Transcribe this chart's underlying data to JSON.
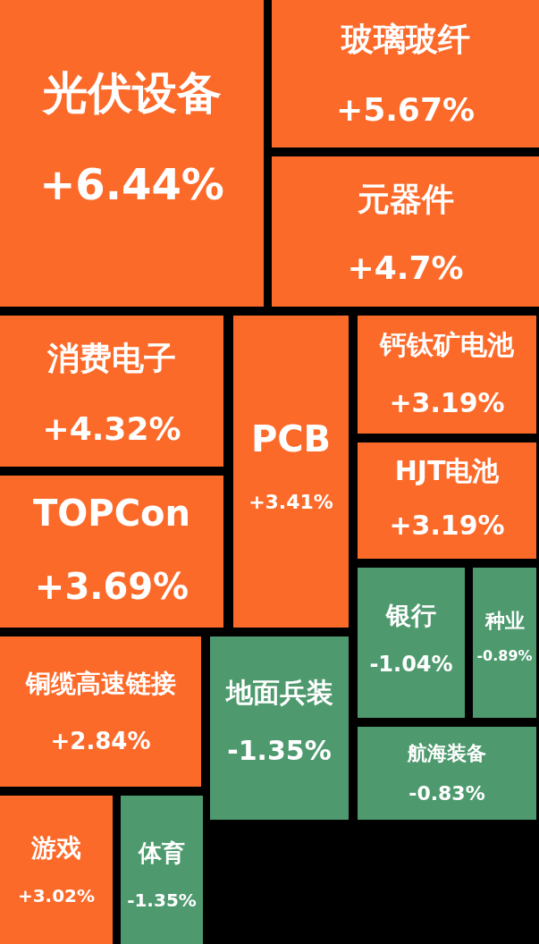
{
  "chart_data": {
    "type": "other",
    "categories": [
      "光伏设备",
      "玻璃玻纤",
      "元器件",
      "消费电子",
      "PCB",
      "钙钛矿电池",
      "HJT电池",
      "TOPCon",
      "银行",
      "种业",
      "铜缆高速链接",
      "地面兵装",
      "航海装备",
      "游戏",
      "体育"
    ],
    "values": [
      6.44,
      5.67,
      4.7,
      4.32,
      3.41,
      3.19,
      3.19,
      3.69,
      -1.04,
      -0.89,
      2.84,
      -1.35,
      -0.83,
      3.02,
      -1.35
    ],
    "value_labels": [
      "+6.44%",
      "+5.67%",
      "+4.7%",
      "+4.32%",
      "+3.41%",
      "+3.19%",
      "+3.19%",
      "+3.69%",
      "-1.04%",
      "-0.89%",
      "+2.84%",
      "-1.35%",
      "-0.83%",
      "+3.02%",
      "-1.35%"
    ],
    "colors": [
      "#fc6a2a",
      "#fc6a2a",
      "#fc6a2a",
      "#fc6a2a",
      "#fc6a2a",
      "#fc6a2a",
      "#fc6a2a",
      "#fc6a2a",
      "#4e9a6e",
      "#4e9a6e",
      "#fc6a2a",
      "#4e9a6e",
      "#4e9a6e",
      "#fc6a2a",
      "#4e9a6e"
    ]
  }
}
